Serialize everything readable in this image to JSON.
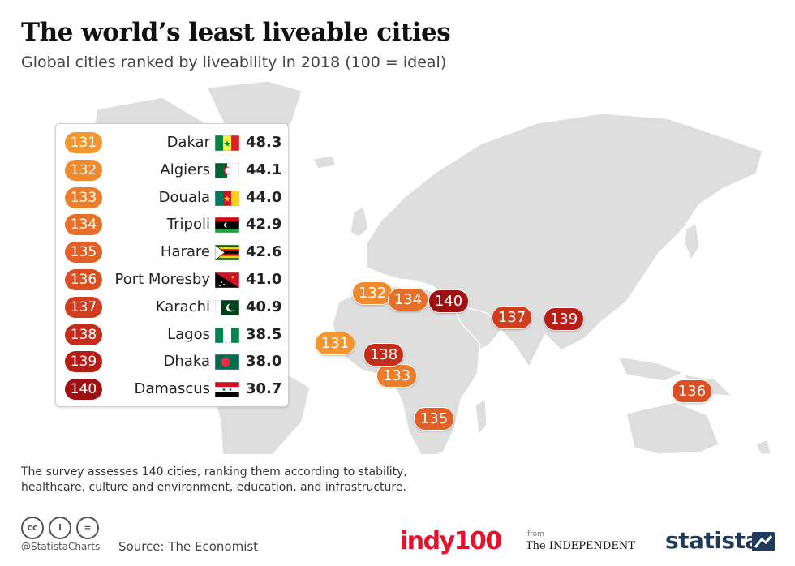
{
  "header": {
    "title": "The world’s least liveable cities",
    "subtitle": "Global cities ranked by liveability in 2018 (100 = ideal)"
  },
  "chart_data": {
    "type": "table",
    "title": "The world’s least liveable cities",
    "subtitle": "Global cities ranked by liveability in 2018 (100 = ideal)",
    "columns": [
      "rank",
      "city",
      "score"
    ],
    "rows": [
      {
        "rank": "131",
        "city": "Dakar",
        "score": "48.3",
        "color": "#f2962f"
      },
      {
        "rank": "132",
        "city": "Algiers",
        "score": "44.1",
        "color": "#f08a2c"
      },
      {
        "rank": "133",
        "city": "Douala",
        "score": "44.0",
        "color": "#ec7d2a"
      },
      {
        "rank": "134",
        "city": "Tripoli",
        "score": "42.9",
        "color": "#e86f28"
      },
      {
        "rank": "135",
        "city": "Harare",
        "score": "42.6",
        "color": "#e26026"
      },
      {
        "rank": "136",
        "city": "Port Moresby",
        "score": "41.0",
        "color": "#da4f23"
      },
      {
        "rank": "137",
        "city": "Karachi",
        "score": "40.9",
        "color": "#d03e1f"
      },
      {
        "rank": "138",
        "city": "Lagos",
        "score": "38.5",
        "color": "#c42d1b"
      },
      {
        "rank": "139",
        "city": "Dhaka",
        "score": "38.0",
        "color": "#b61d17"
      },
      {
        "rank": "140",
        "city": "Damascus",
        "score": "30.7",
        "color": "#a00f12"
      }
    ]
  },
  "footer": {
    "note": "The survey assesses 140 cities,  ranking them according to stability, healthcare, culture and environment, education, and infrastructure.",
    "handle": "@StatistaCharts",
    "source": "Source: The Economist",
    "cc_icons": [
      "cc-icon",
      "attribution-icon",
      "no-derivatives-icon"
    ],
    "cc_glyphs": [
      "cc",
      "i",
      "="
    ],
    "brand_indy": "indy100",
    "from_label": "from",
    "independent": "The INDEPENDENT",
    "statista": "statista"
  }
}
